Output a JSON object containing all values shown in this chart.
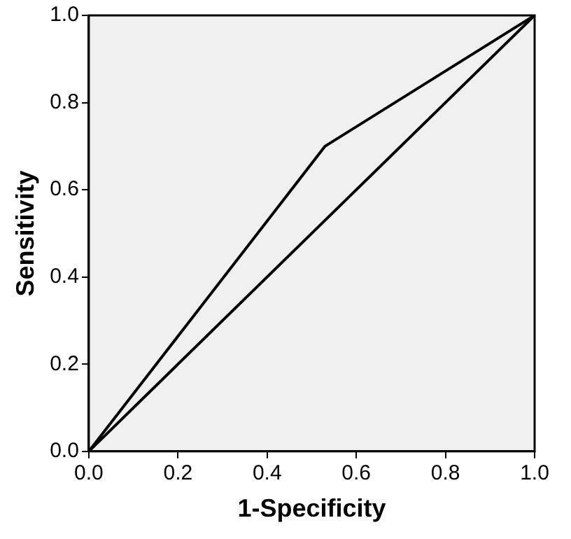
{
  "chart_data": {
    "type": "line",
    "xlabel": "1-Specificity",
    "ylabel": "Sensitivity",
    "xlim": [
      0,
      1
    ],
    "ylim": [
      0,
      1
    ],
    "xticks": [
      {
        "value": 0,
        "label": "0.0"
      },
      {
        "value": 0.2,
        "label": "0.2"
      },
      {
        "value": 0.4,
        "label": "0.4"
      },
      {
        "value": 0.6,
        "label": "0.6"
      },
      {
        "value": 0.8,
        "label": "0.8"
      },
      {
        "value": 1,
        "label": "1.0"
      }
    ],
    "yticks": [
      {
        "value": 0,
        "label": "0.0"
      },
      {
        "value": 0.2,
        "label": "0.2"
      },
      {
        "value": 0.4,
        "label": "0.4"
      },
      {
        "value": 0.6,
        "label": "0.6"
      },
      {
        "value": 0.8,
        "label": "0.8"
      },
      {
        "value": 1,
        "label": "1.0"
      }
    ],
    "grid": false,
    "legend": false,
    "marker": "none",
    "line_style": "solid",
    "series": [
      {
        "color": "#000000",
        "x": [
          0,
          0.53,
          1
        ],
        "values": [
          0,
          0.7,
          1
        ]
      },
      {
        "color": "#000000",
        "x": [
          0,
          1
        ],
        "values": [
          0,
          1
        ]
      }
    ]
  }
}
